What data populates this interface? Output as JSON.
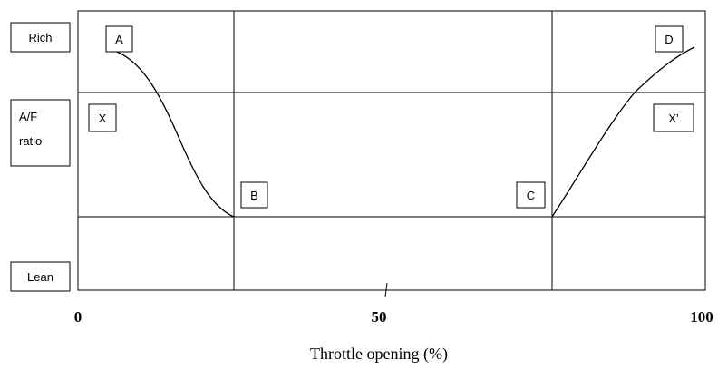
{
  "chart_data": {
    "type": "line",
    "title": "",
    "xlabel": "Throttle opening (%)",
    "xticks": [
      "0",
      "50",
      "100"
    ],
    "xlim": [
      0,
      100
    ],
    "ylabel": "A/F ratio",
    "y_levels": {
      "top": "Rich",
      "bottom": "Lean"
    },
    "grid": true,
    "series": [
      {
        "x": [
          5.8,
          10,
          14,
          18,
          21,
          24,
          25.3
        ],
        "y": [
          "Rich",
          "Rich",
          "between Rich and Lean",
          "between Rich and Lean",
          "near Lean",
          "near Lean",
          "Lean"
        ]
      },
      {
        "x": [
          77.3,
          83,
          89,
          93,
          99
        ],
        "y": [
          "Lean",
          "between Lean and Rich",
          "between Lean and Rich",
          "near Rich",
          "Rich"
        ]
      }
    ],
    "annotations": [
      "A",
      "B",
      "C",
      "D",
      "X",
      "X’"
    ]
  },
  "labels": {
    "rich": "Rich",
    "lean": "Lean",
    "af_line1": "A/F",
    "af_line2": "ratio",
    "point_a": "A",
    "point_b": "B",
    "point_c": "C",
    "point_d": "D",
    "point_x": "X",
    "point_x_prime": "X’"
  }
}
